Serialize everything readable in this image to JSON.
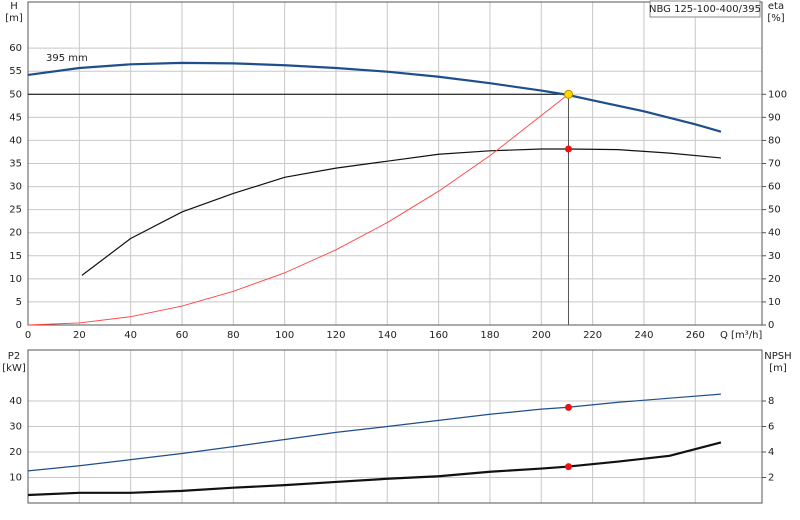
{
  "chart_data": [
    {
      "type": "line",
      "title": "NBG 125-100-400/395",
      "annotation": "395 mm",
      "ylabel": [
        "H",
        "[m]"
      ],
      "y2label": [
        "eta",
        "[%]"
      ],
      "xlabel": "Q [m³/h]",
      "xlim": [
        0,
        286
      ],
      "xticks": [
        0,
        20,
        40,
        60,
        80,
        100,
        120,
        140,
        160,
        180,
        200,
        220,
        240,
        260
      ],
      "ylim": [
        0,
        70
      ],
      "yticks": [
        0,
        5,
        10,
        15,
        20,
        25,
        30,
        35,
        40,
        45,
        50,
        55,
        60
      ],
      "y2lim": [
        0,
        140
      ],
      "y2ticks": [
        0,
        10,
        20,
        30,
        40,
        50,
        60,
        70,
        80,
        90,
        100
      ],
      "grid": true,
      "series": [
        {
          "color": "#1f4e8c",
          "width": 2.2,
          "x": [
            0,
            20,
            40,
            60,
            80,
            100,
            120,
            140,
            160,
            180,
            200,
            210,
            220,
            240,
            260,
            270
          ],
          "values": [
            54.2,
            55.7,
            56.5,
            56.8,
            56.7,
            56.3,
            55.7,
            54.9,
            53.8,
            52.4,
            50.8,
            49.9,
            48.7,
            46.3,
            43.5,
            41.9
          ]
        },
        {
          "color": "#111111",
          "width": 1.2,
          "axis": "y2",
          "x": [
            21,
            40,
            60,
            80,
            100,
            120,
            140,
            160,
            180,
            200,
            211,
            230,
            250,
            270
          ],
          "values": [
            21.5,
            37.5,
            49,
            57,
            64,
            68,
            71,
            74,
            75.5,
            76.3,
            76.3,
            76,
            74.5,
            72.4
          ]
        },
        {
          "color": "#ff4444",
          "width": 0.9,
          "x": [
            0,
            20,
            40,
            60,
            80,
            100,
            120,
            140,
            160,
            180,
            200,
            210.6
          ],
          "values": [
            0,
            0.45,
            1.8,
            4.1,
            7.3,
            11.3,
            16.3,
            22.2,
            29.0,
            36.7,
            45.4,
            50
          ]
        }
      ],
      "duty_point": {
        "x": 210.6,
        "y": 50,
        "color": "#ffd700"
      },
      "points": [
        {
          "x": 210.6,
          "y": 76.3,
          "axis": "y2",
          "color": "#ee1111"
        }
      ]
    },
    {
      "type": "line",
      "ylabel": [
        "P2",
        "[kW]"
      ],
      "y2label": [
        "NPSH",
        "[m]"
      ],
      "xlim": [
        0,
        286
      ],
      "ylim": [
        0,
        60
      ],
      "yticks": [
        10,
        20,
        30,
        40
      ],
      "y2lim": [
        0,
        12
      ],
      "y2ticks": [
        2,
        4,
        6,
        8
      ],
      "grid": true,
      "series": [
        {
          "color": "#1f4e8c",
          "width": 1.2,
          "x": [
            0,
            20,
            40,
            60,
            80,
            100,
            120,
            140,
            160,
            180,
            200,
            210,
            230,
            250,
            270
          ],
          "values": [
            12.6,
            14.6,
            17,
            19.4,
            22.1,
            24.9,
            27.7,
            30,
            32.4,
            34.8,
            36.8,
            37.5,
            39.5,
            41.1,
            42.7
          ]
        },
        {
          "color": "#111111",
          "width": 2.2,
          "axis": "y2",
          "x": [
            0,
            20,
            40,
            60,
            80,
            100,
            120,
            140,
            160,
            180,
            200,
            210,
            230,
            250,
            270
          ],
          "values": [
            0.63,
            0.8,
            0.8,
            0.95,
            1.2,
            1.4,
            1.65,
            1.9,
            2.1,
            2.45,
            2.7,
            2.85,
            3.25,
            3.7,
            4.75
          ]
        }
      ],
      "points": [
        {
          "x": 210.6,
          "y": 37.5,
          "color": "#ee1111"
        },
        {
          "x": 210.6,
          "y": 2.85,
          "axis": "y2",
          "color": "#ee1111"
        }
      ]
    }
  ]
}
